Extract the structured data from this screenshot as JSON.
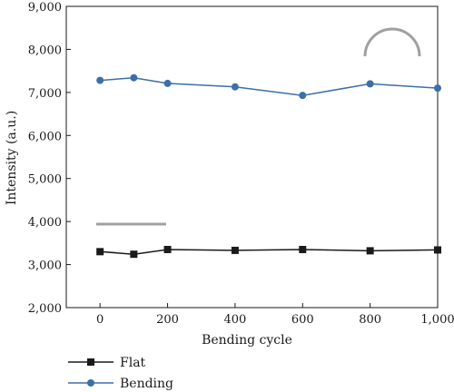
{
  "chart_data": {
    "type": "line",
    "title": "",
    "xlabel": "Bending cycle",
    "ylabel": "Intensity (a.u.)",
    "xlim": [
      -100,
      1000
    ],
    "ylim": [
      2000,
      9000
    ],
    "x_ticks": [
      0,
      200,
      400,
      600,
      800,
      1000
    ],
    "x_tick_labels": [
      "0",
      "200",
      "400",
      "600",
      "800",
      "1,000"
    ],
    "y_ticks": [
      2000,
      3000,
      4000,
      5000,
      6000,
      7000,
      8000,
      9000
    ],
    "y_tick_labels": [
      "2,000",
      "3,000",
      "4,000",
      "5,000",
      "6,000",
      "7,000",
      "8,000",
      "9,000"
    ],
    "grid": false,
    "legend_position": "bottom-left, below plot",
    "x": [
      0,
      100,
      200,
      400,
      600,
      800,
      1000
    ],
    "series": [
      {
        "name": "Flat",
        "marker": "square",
        "color": "#1a1a1a",
        "values": [
          3300,
          3240,
          3350,
          3330,
          3350,
          3320,
          3340
        ]
      },
      {
        "name": "Bending",
        "marker": "circle",
        "color": "#3b6fa6",
        "values": [
          7280,
          7340,
          7210,
          7130,
          6930,
          7200,
          7100
        ]
      }
    ],
    "annotations": [
      {
        "shape": "flat-line-icon",
        "color": "#a0a0a0"
      },
      {
        "shape": "bent-arc-icon",
        "color": "#a0a0a0"
      }
    ]
  }
}
